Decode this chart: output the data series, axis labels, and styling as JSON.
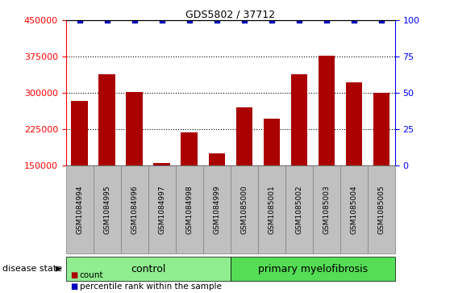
{
  "title": "GDS5802 / 37712",
  "samples": [
    "GSM1084994",
    "GSM1084995",
    "GSM1084996",
    "GSM1084997",
    "GSM1084998",
    "GSM1084999",
    "GSM1085000",
    "GSM1085001",
    "GSM1085002",
    "GSM1085003",
    "GSM1085004",
    "GSM1085005"
  ],
  "counts": [
    283000,
    338000,
    302000,
    155000,
    218000,
    175000,
    270000,
    247000,
    338000,
    378000,
    322000,
    301000
  ],
  "percentiles": [
    100,
    100,
    100,
    100,
    100,
    100,
    100,
    100,
    100,
    100,
    100,
    100
  ],
  "n_control": 6,
  "n_disease": 6,
  "ylim_left": [
    150000,
    450000
  ],
  "ylim_right": [
    0,
    100
  ],
  "yticks_left": [
    150000,
    225000,
    300000,
    375000,
    450000
  ],
  "yticks_right": [
    0,
    25,
    50,
    75,
    100
  ],
  "bar_color": "#AA0000",
  "dot_color": "#0000BB",
  "control_color": "#90EE90",
  "myelofibrosis_color": "#55DD55",
  "bg_color": "#C0C0C0",
  "control_label": "control",
  "disease_label": "primary myelofibrosis",
  "legend_count_label": "count",
  "legend_percentile_label": "percentile rank within the sample",
  "disease_state_label": "disease state",
  "xlim": [
    -0.5,
    11.5
  ]
}
